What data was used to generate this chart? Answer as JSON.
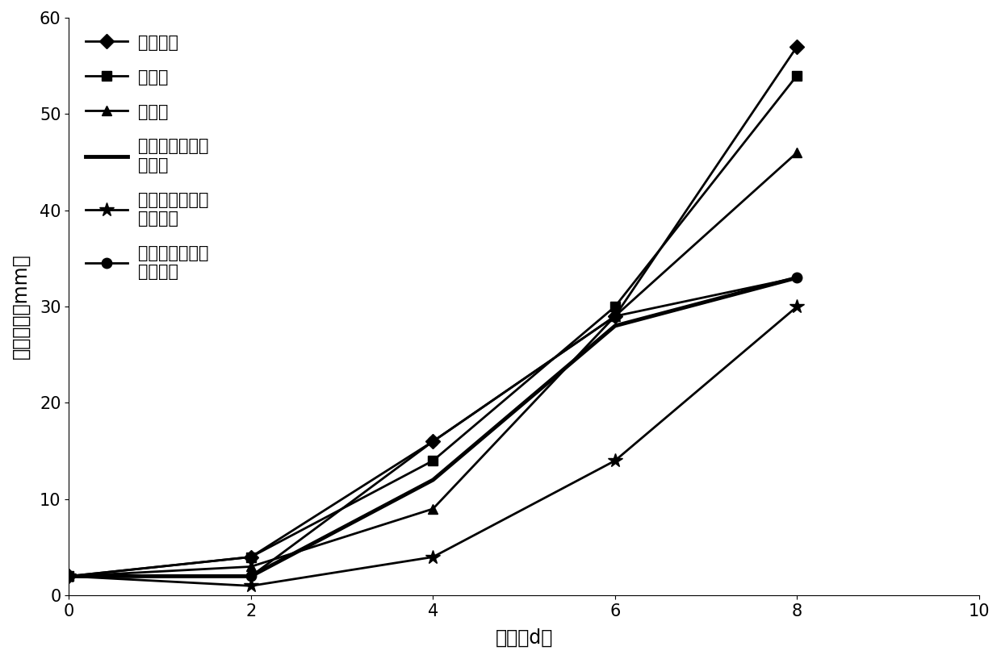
{
  "x": [
    0,
    2,
    4,
    6,
    8
  ],
  "series": [
    {
      "label": "空白对照",
      "y": [
        2,
        4,
        16,
        29,
        57
      ],
      "marker": "D",
      "markersize": 9,
      "linewidth": 2,
      "color": "#000000"
    },
    {
      "label": "多菌灵",
      "y": [
        2,
        4,
        14,
        30,
        54
      ],
      "marker": "s",
      "markersize": 9,
      "linewidth": 2,
      "color": "#000000"
    },
    {
      "label": "咋酰胺",
      "y": [
        2,
        3,
        9,
        29,
        46
      ],
      "marker": "^",
      "markersize": 9,
      "linewidth": 2,
      "color": "#000000"
    },
    {
      "label": "咋酰胺和松属素\n复合物",
      "y": [
        2,
        2,
        12,
        28,
        33
      ],
      "marker": "None",
      "markersize": 0,
      "linewidth": 3.5,
      "color": "#000000"
    },
    {
      "label": "多菌灵和高良姜\n素复合物",
      "y": [
        2,
        1,
        4,
        14,
        30
      ],
      "marker": "*",
      "markersize": 13,
      "linewidth": 2,
      "color": "#000000"
    },
    {
      "label": "咋酰胺和高良姜\n素复合物",
      "y": [
        2,
        2,
        16,
        29,
        33
      ],
      "marker": "o",
      "markersize": 9,
      "linewidth": 2,
      "color": "#000000"
    }
  ],
  "xlabel": "天数（d）",
  "ylabel": "菌斑直径（mm）",
  "xlim": [
    0,
    10
  ],
  "ylim": [
    0,
    60
  ],
  "xticks": [
    0,
    2,
    4,
    6,
    8,
    10
  ],
  "yticks": [
    0,
    10,
    20,
    30,
    40,
    50,
    60
  ],
  "background_color": "#ffffff",
  "legend_fontsize": 15,
  "axis_fontsize": 17,
  "tick_fontsize": 15
}
